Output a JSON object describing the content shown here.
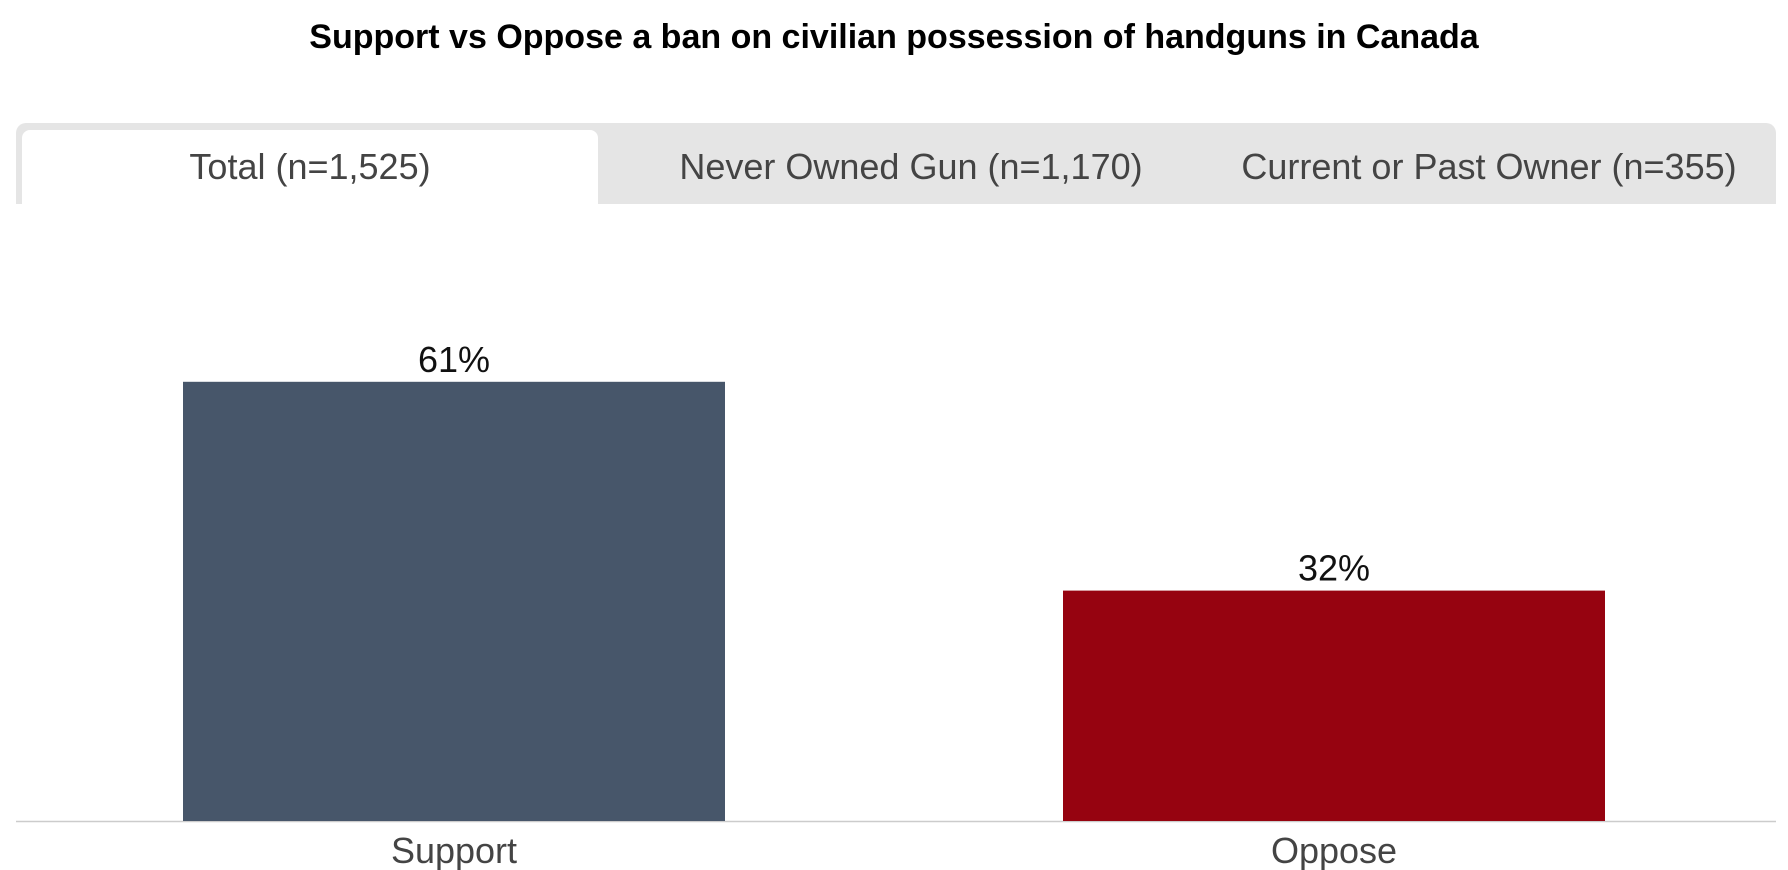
{
  "title": "Support vs Oppose a ban on civilian possession of handguns in Canada",
  "tabs": [
    {
      "label": "Total (n=1,525)",
      "active": true
    },
    {
      "label": "Never Owned Gun (n=1,170)",
      "active": false
    },
    {
      "label": "Current or Past Owner (n=355)",
      "active": false
    }
  ],
  "colors": {
    "support": "#47566a",
    "oppose": "#960310",
    "axis": "#cccccc"
  },
  "chart_data": {
    "type": "bar",
    "title": "Support vs Oppose a ban on civilian possession of handguns in Canada",
    "categories": [
      "Support",
      "Oppose"
    ],
    "values": [
      61,
      32
    ],
    "value_labels": [
      "61%",
      "32%"
    ],
    "bar_colors": [
      "#47566a",
      "#960310"
    ],
    "ylim": [
      0,
      100
    ],
    "xlabel": "",
    "ylabel": "",
    "grid": false,
    "legend": "none"
  }
}
